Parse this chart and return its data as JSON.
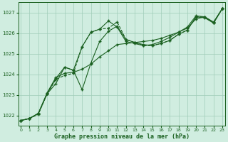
{
  "title": "Graphe pression niveau de la mer (hPa)",
  "xlabel_ticks": [
    0,
    1,
    2,
    3,
    4,
    5,
    6,
    7,
    8,
    9,
    10,
    11,
    12,
    13,
    14,
    15,
    16,
    17,
    18,
    19,
    20,
    21,
    22,
    23
  ],
  "ylim": [
    1021.5,
    1027.5
  ],
  "xlim": [
    -0.3,
    23.3
  ],
  "yticks": [
    1022,
    1023,
    1024,
    1025,
    1026,
    1027
  ],
  "bg_color": "#d0ede0",
  "grid_color": "#a0ccb8",
  "line_color": "#1a6020",
  "line1_x": [
    0,
    1,
    2,
    3,
    4,
    5,
    6,
    7,
    8,
    9,
    10,
    11,
    12,
    13,
    14,
    15,
    16,
    17,
    18,
    19,
    20,
    21,
    22,
    23
  ],
  "line1_y": [
    1021.75,
    1021.85,
    1022.05,
    1023.05,
    1023.75,
    1023.95,
    1024.05,
    1025.35,
    1026.05,
    1026.2,
    1026.25,
    1026.55,
    1025.7,
    1025.55,
    1025.4,
    1025.4,
    1025.5,
    1025.65,
    1025.95,
    1026.15,
    1026.8,
    1026.8,
    1026.5,
    1027.2
  ],
  "line2_x": [
    0,
    1,
    2,
    3,
    4,
    5,
    6,
    7,
    8,
    9,
    10,
    11,
    12,
    13,
    14,
    15,
    16,
    17,
    18,
    19,
    20,
    21,
    22,
    23
  ],
  "line2_y": [
    1021.75,
    1021.85,
    1022.1,
    1023.05,
    1023.55,
    1024.35,
    1024.2,
    1023.25,
    1024.55,
    1025.6,
    1026.1,
    1026.35,
    1025.7,
    1025.55,
    1025.45,
    1025.4,
    1025.5,
    1025.65,
    1025.95,
    1026.15,
    1026.8,
    1026.75,
    1026.5,
    1027.2
  ],
  "line3_x": [
    0,
    1,
    2,
    3,
    4,
    5,
    6,
    7,
    8,
    9,
    10,
    11,
    12,
    13,
    14,
    15,
    16,
    17,
    18,
    19,
    20,
    21,
    22,
    23
  ],
  "line3_y": [
    1021.75,
    1021.85,
    1022.1,
    1023.05,
    1023.8,
    1024.35,
    1024.2,
    1025.35,
    1026.05,
    1026.2,
    1026.6,
    1026.3,
    1025.6,
    1025.5,
    1025.4,
    1025.45,
    1025.6,
    1025.8,
    1026.05,
    1026.3,
    1026.85,
    1026.8,
    1026.5,
    1027.2
  ],
  "line4_x": [
    0,
    1,
    2,
    3,
    4,
    5,
    6,
    7,
    8,
    9,
    10,
    11,
    12,
    13,
    14,
    15,
    16,
    17,
    18,
    19,
    20,
    21,
    22,
    23
  ],
  "line4_y": [
    1021.75,
    1021.85,
    1022.1,
    1023.1,
    1023.85,
    1024.05,
    1024.1,
    1024.25,
    1024.5,
    1024.85,
    1025.15,
    1025.45,
    1025.5,
    1025.55,
    1025.6,
    1025.65,
    1025.75,
    1025.9,
    1026.05,
    1026.25,
    1026.7,
    1026.8,
    1026.55,
    1027.2
  ]
}
